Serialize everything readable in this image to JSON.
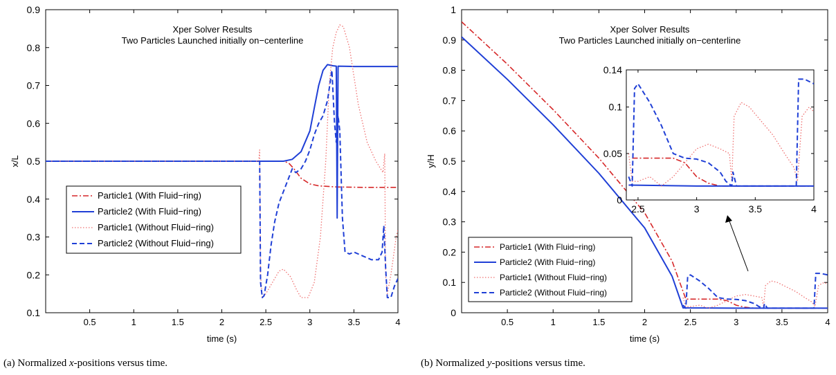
{
  "chart_data": [
    {
      "type": "line",
      "title": [
        "Xper Solver Results",
        "Two Particles Launched initially on−centerline"
      ],
      "xlabel": "time (s)",
      "ylabel": "x/L",
      "xlim": [
        0,
        4
      ],
      "ylim": [
        0.1,
        0.9
      ],
      "xticks": [
        "0.5",
        "1",
        "1.5",
        "2",
        "2.5",
        "3",
        "3.5",
        "4"
      ],
      "yticks": [
        "0.1",
        "0.2",
        "0.3",
        "0.4",
        "0.5",
        "0.6",
        "0.7",
        "0.8",
        "0.9"
      ],
      "legend_position": "lower-left",
      "series": [
        {
          "name": "Particle1 (With Fluid−ring)",
          "color": "#d62728",
          "style": "dashdot",
          "points": [
            [
              0,
              0.5
            ],
            [
              2.7,
              0.5
            ],
            [
              2.76,
              0.495
            ],
            [
              2.82,
              0.48
            ],
            [
              2.9,
              0.455
            ],
            [
              3.0,
              0.44
            ],
            [
              3.1,
              0.435
            ],
            [
              3.3,
              0.432
            ],
            [
              3.6,
              0.431
            ],
            [
              4.0,
              0.431
            ]
          ]
        },
        {
          "name": "Particle2 (With Fluid−ring)",
          "color": "#1f3fd6",
          "style": "solid",
          "points": [
            [
              0,
              0.5
            ],
            [
              2.7,
              0.5
            ],
            [
              2.8,
              0.505
            ],
            [
              2.9,
              0.525
            ],
            [
              3.0,
              0.58
            ],
            [
              3.05,
              0.64
            ],
            [
              3.1,
              0.7
            ],
            [
              3.15,
              0.74
            ],
            [
              3.2,
              0.755
            ],
            [
              3.26,
              0.752
            ],
            [
              3.3,
              0.751
            ],
            [
              3.31,
              0.35
            ],
            [
              3.32,
              0.751
            ],
            [
              3.5,
              0.75
            ],
            [
              4.0,
              0.75
            ]
          ]
        },
        {
          "name": "Particle1 (Without Fluid−ring)",
          "color": "#ef7070",
          "style": "dotted",
          "points": [
            [
              0,
              0.5
            ],
            [
              2.42,
              0.5
            ],
            [
              2.43,
              0.53
            ],
            [
              2.44,
              0.2
            ],
            [
              2.46,
              0.14
            ],
            [
              2.5,
              0.15
            ],
            [
              2.55,
              0.17
            ],
            [
              2.65,
              0.21
            ],
            [
              2.7,
              0.215
            ],
            [
              2.78,
              0.195
            ],
            [
              2.85,
              0.16
            ],
            [
              2.9,
              0.14
            ],
            [
              2.98,
              0.14
            ],
            [
              3.05,
              0.18
            ],
            [
              3.12,
              0.3
            ],
            [
              3.18,
              0.5
            ],
            [
              3.22,
              0.7
            ],
            [
              3.26,
              0.8
            ],
            [
              3.3,
              0.84
            ],
            [
              3.34,
              0.86
            ],
            [
              3.38,
              0.855
            ],
            [
              3.45,
              0.8
            ],
            [
              3.55,
              0.65
            ],
            [
              3.65,
              0.55
            ],
            [
              3.75,
              0.5
            ],
            [
              3.83,
              0.47
            ],
            [
              3.85,
              0.52
            ],
            [
              3.86,
              0.2
            ],
            [
              3.88,
              0.15
            ],
            [
              3.92,
              0.2
            ],
            [
              3.98,
              0.3
            ],
            [
              4.0,
              0.32
            ]
          ]
        },
        {
          "name": "Particle2 (Without Fluid−ring)",
          "color": "#1f3fd6",
          "style": "dashed",
          "points": [
            [
              0,
              0.5
            ],
            [
              2.43,
              0.5
            ],
            [
              2.44,
              0.18
            ],
            [
              2.46,
              0.14
            ],
            [
              2.48,
              0.145
            ],
            [
              2.52,
              0.2
            ],
            [
              2.56,
              0.28
            ],
            [
              2.6,
              0.34
            ],
            [
              2.65,
              0.39
            ],
            [
              2.7,
              0.42
            ],
            [
              2.75,
              0.45
            ],
            [
              2.8,
              0.48
            ],
            [
              2.84,
              0.47
            ],
            [
              2.9,
              0.48
            ],
            [
              2.95,
              0.5
            ],
            [
              3.0,
              0.53
            ],
            [
              3.05,
              0.57
            ],
            [
              3.1,
              0.6
            ],
            [
              3.15,
              0.62
            ],
            [
              3.2,
              0.66
            ],
            [
              3.25,
              0.74
            ],
            [
              3.28,
              0.6
            ],
            [
              3.3,
              0.55
            ],
            [
              3.32,
              0.62
            ],
            [
              3.34,
              0.58
            ],
            [
              3.37,
              0.35
            ],
            [
              3.4,
              0.26
            ],
            [
              3.45,
              0.255
            ],
            [
              3.5,
              0.26
            ],
            [
              3.6,
              0.25
            ],
            [
              3.7,
              0.24
            ],
            [
              3.78,
              0.24
            ],
            [
              3.82,
              0.26
            ],
            [
              3.84,
              0.33
            ],
            [
              3.86,
              0.22
            ],
            [
              3.88,
              0.14
            ],
            [
              3.92,
              0.14
            ],
            [
              3.96,
              0.17
            ],
            [
              4.0,
              0.19
            ]
          ]
        }
      ]
    },
    {
      "type": "line",
      "title": [
        "Xper Solver Results",
        "Two Particles Launched initially on−centerline"
      ],
      "xlabel": "time (s)",
      "ylabel": "y/H",
      "xlim": [
        0,
        4
      ],
      "ylim": [
        0,
        1
      ],
      "xticks": [
        "0.5",
        "1",
        "1.5",
        "2",
        "2.5",
        "3",
        "3.5",
        "4"
      ],
      "yticks": [
        "0",
        "0.1",
        "0.2",
        "0.3",
        "0.4",
        "0.5",
        "0.6",
        "0.7",
        "0.8",
        "0.9",
        "1"
      ],
      "legend_position": "lower-left",
      "series": [
        {
          "name": "Particle1 (With Fluid−ring)",
          "color": "#d62728",
          "style": "dashdot",
          "points": [
            [
              0,
              0.96
            ],
            [
              0.5,
              0.82
            ],
            [
              1.0,
              0.67
            ],
            [
              1.5,
              0.51
            ],
            [
              2.0,
              0.33
            ],
            [
              2.3,
              0.17
            ],
            [
              2.45,
              0.045
            ],
            [
              2.8,
              0.045
            ],
            [
              2.9,
              0.04
            ],
            [
              3.0,
              0.025
            ],
            [
              3.1,
              0.018
            ],
            [
              3.2,
              0.015
            ],
            [
              4.0,
              0.015
            ]
          ]
        },
        {
          "name": "Particle2 (With Fluid−ring)",
          "color": "#1f3fd6",
          "style": "solid",
          "points": [
            [
              0,
              0.91
            ],
            [
              0.5,
              0.77
            ],
            [
              1.0,
              0.62
            ],
            [
              1.5,
              0.46
            ],
            [
              2.0,
              0.28
            ],
            [
              2.3,
              0.12
            ],
            [
              2.42,
              0.016
            ],
            [
              3.0,
              0.015
            ],
            [
              4.0,
              0.015
            ]
          ]
        },
        {
          "name": "Particle1 (Without Fluid−ring)",
          "color": "#ef7070",
          "style": "dotted",
          "points": [
            [
              2.42,
              0.05
            ],
            [
              2.45,
              0.02
            ],
            [
              2.5,
              0.02
            ],
            [
              2.6,
              0.025
            ],
            [
              2.7,
              0.015
            ],
            [
              2.8,
              0.025
            ],
            [
              2.9,
              0.04
            ],
            [
              3.0,
              0.055
            ],
            [
              3.1,
              0.06
            ],
            [
              3.2,
              0.055
            ],
            [
              3.28,
              0.05
            ],
            [
              3.3,
              0.02
            ],
            [
              3.32,
              0.09
            ],
            [
              3.38,
              0.105
            ],
            [
              3.45,
              0.1
            ],
            [
              3.55,
              0.085
            ],
            [
              3.65,
              0.07
            ],
            [
              3.75,
              0.05
            ],
            [
              3.83,
              0.035
            ],
            [
              3.86,
              0.02
            ],
            [
              3.9,
              0.09
            ],
            [
              3.96,
              0.1
            ],
            [
              4.0,
              0.095
            ]
          ]
        },
        {
          "name": "Particle2 (Without Fluid−ring)",
          "color": "#1f3fd6",
          "style": "dashed",
          "points": [
            [
              2.42,
              0.025
            ],
            [
              2.45,
              0.015
            ],
            [
              2.47,
              0.12
            ],
            [
              2.5,
              0.125
            ],
            [
              2.6,
              0.105
            ],
            [
              2.7,
              0.08
            ],
            [
              2.8,
              0.05
            ],
            [
              2.9,
              0.045
            ],
            [
              3.0,
              0.044
            ],
            [
              3.1,
              0.04
            ],
            [
              3.2,
              0.03
            ],
            [
              3.25,
              0.02
            ],
            [
              3.3,
              0.015
            ],
            [
              3.31,
              0.03
            ],
            [
              3.34,
              0.015
            ],
            [
              3.85,
              0.015
            ],
            [
              3.87,
              0.13
            ],
            [
              3.92,
              0.13
            ],
            [
              4.0,
              0.125
            ]
          ]
        }
      ],
      "inset": {
        "xlim": [
          2.4,
          4
        ],
        "ylim": [
          0,
          0.14
        ],
        "xticks": [
          "2.5",
          "3",
          "3.5",
          "4"
        ],
        "yticks": [
          "0",
          "0.05",
          "0.1",
          "0.14"
        ]
      }
    }
  ],
  "captions": [
    {
      "prefix": "(a) Normalized ",
      "var": "x",
      "suffix": "-positions versus time."
    },
    {
      "prefix": "(b) Normalized ",
      "var": "y",
      "suffix": "-positions versus time."
    }
  ]
}
